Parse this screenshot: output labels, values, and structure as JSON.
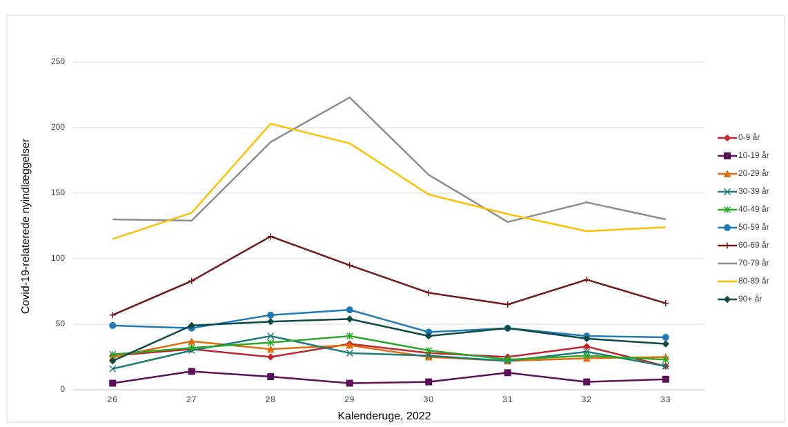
{
  "chart_data": {
    "type": "line",
    "x_label": "Kalenderuge, 2022",
    "y_label": "Covid-19-relaterede nyindlæggelser",
    "categories": [
      "26",
      "27",
      "28",
      "29",
      "30",
      "31",
      "32",
      "33"
    ],
    "ylim": [
      0,
      250
    ],
    "yticks": [
      0,
      50,
      100,
      150,
      200,
      250
    ],
    "grid": true,
    "legend": "right",
    "series": [
      {
        "name": "0-9 år",
        "color": "#c0262d",
        "marker": "diamond",
        "values": [
          26,
          31,
          25,
          35,
          28,
          25,
          33,
          18
        ]
      },
      {
        "name": "10-19 år",
        "color": "#5b0f5b",
        "marker": "square",
        "values": [
          5,
          14,
          10,
          5,
          6,
          13,
          6,
          8
        ]
      },
      {
        "name": "20-29 år",
        "color": "#e36c0a",
        "marker": "triangle",
        "values": [
          25,
          37,
          31,
          34,
          25,
          22,
          24,
          25
        ]
      },
      {
        "name": "30-39 år",
        "color": "#1b7b7b",
        "marker": "x",
        "values": [
          16,
          30,
          41,
          28,
          26,
          22,
          29,
          18
        ]
      },
      {
        "name": "40-49 år",
        "color": "#2aa82a",
        "marker": "asterisk",
        "values": [
          27,
          32,
          36,
          41,
          30,
          23,
          26,
          23
        ]
      },
      {
        "name": "50-59 år",
        "color": "#1f7ab8",
        "marker": "circle",
        "values": [
          49,
          47,
          57,
          61,
          44,
          47,
          41,
          40
        ]
      },
      {
        "name": "60-69 år",
        "color": "#741818",
        "marker": "plus",
        "values": [
          57,
          83,
          117,
          95,
          74,
          65,
          84,
          66
        ]
      },
      {
        "name": "70-79 år",
        "color": "#8c8c8c",
        "marker": "none",
        "values": [
          130,
          129,
          189,
          223,
          164,
          128,
          143,
          130
        ]
      },
      {
        "name": "80-89 år",
        "color": "#ffc000",
        "marker": "none",
        "values": [
          115,
          135,
          203,
          188,
          149,
          134,
          121,
          124
        ]
      },
      {
        "name": "90+ år",
        "color": "#0e4a45",
        "marker": "diamond",
        "values": [
          22,
          49,
          52,
          54,
          41,
          47,
          39,
          35
        ]
      }
    ]
  }
}
